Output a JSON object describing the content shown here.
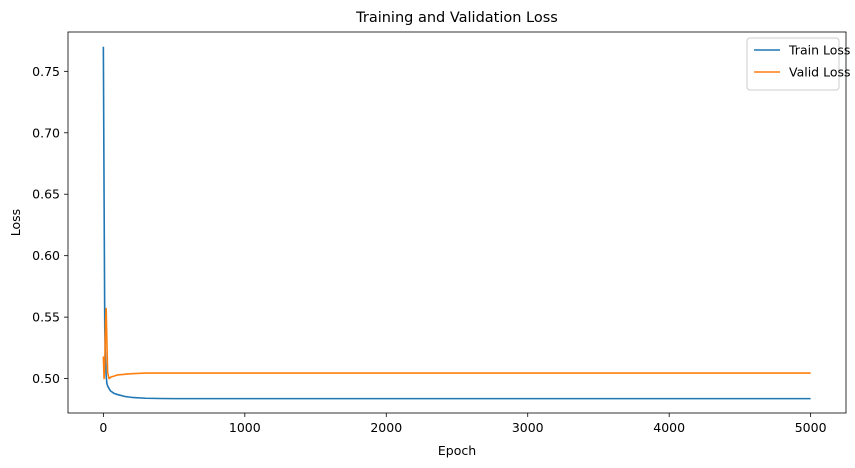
{
  "chart_data": {
    "type": "line",
    "title": "Training and Validation Loss",
    "xlabel": "Epoch",
    "ylabel": "Loss",
    "xlim": [
      -250,
      5250
    ],
    "ylim": [
      0.472,
      0.782
    ],
    "xticks": [
      0,
      1000,
      2000,
      3000,
      4000,
      5000
    ],
    "xtick_labels": [
      "0",
      "1000",
      "2000",
      "3000",
      "4000",
      "5000"
    ],
    "yticks": [
      0.5,
      0.55,
      0.6,
      0.65,
      0.7,
      0.75
    ],
    "ytick_labels": [
      "0.50",
      "0.55",
      "0.60",
      "0.65",
      "0.70",
      "0.75"
    ],
    "grid": false,
    "legend_position": "top-right",
    "series": [
      {
        "name": "Train Loss",
        "color": "#1f77b4",
        "x": [
          0,
          5,
          10,
          15,
          20,
          25,
          30,
          40,
          50,
          75,
          100,
          150,
          200,
          300,
          400,
          500,
          1000,
          2000,
          3000,
          4000,
          5000
        ],
        "y": [
          0.77,
          0.65,
          0.54,
          0.515,
          0.502,
          0.496,
          0.494,
          0.492,
          0.49,
          0.488,
          0.487,
          0.4855,
          0.4847,
          0.484,
          0.4838,
          0.4837,
          0.4837,
          0.4837,
          0.4837,
          0.4837,
          0.4837
        ]
      },
      {
        "name": "Valid Loss",
        "color": "#ff7f0e",
        "x": [
          0,
          5,
          10,
          15,
          20,
          25,
          30,
          40,
          50,
          60,
          75,
          100,
          150,
          200,
          300,
          400,
          500,
          1000,
          2000,
          3000,
          4000,
          5000
        ],
        "y": [
          0.518,
          0.5,
          0.512,
          0.545,
          0.557,
          0.53,
          0.505,
          0.5,
          0.501,
          0.5015,
          0.502,
          0.503,
          0.5035,
          0.504,
          0.5045,
          0.5045,
          0.5045,
          0.5045,
          0.5045,
          0.5045,
          0.5045,
          0.5045
        ]
      }
    ]
  }
}
